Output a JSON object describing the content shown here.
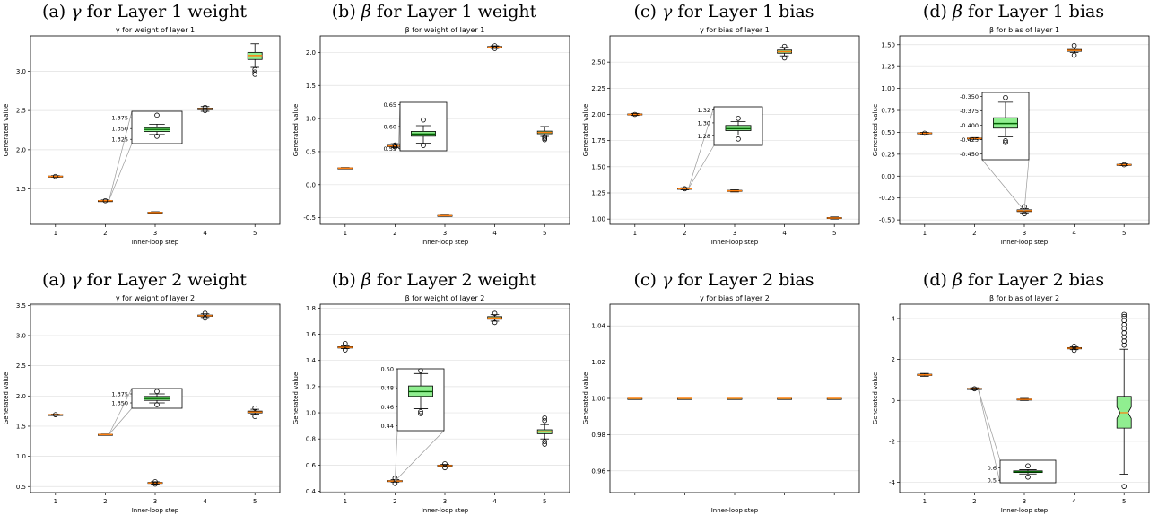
{
  "chart_data": [
    {
      "type": "box",
      "caption_prefix": "(a)",
      "caption_greek": "γ",
      "caption_rest": "for Layer 1 weight",
      "title": "γ for weight of layer 1",
      "xlabel": "Inner-loop step",
      "ylabel": "Generated value",
      "categories": [
        "1",
        "2",
        "3",
        "4",
        "5"
      ],
      "ylim": [
        1.05,
        3.45
      ],
      "yticks": [
        "1.5",
        "2.0",
        "2.5",
        "3.0"
      ],
      "grid": "horizontal",
      "boxes": [
        {
          "x": "1",
          "q1": 1.655,
          "median": 1.66,
          "q3": 1.665,
          "whisker_low": 1.65,
          "whisker_high": 1.67,
          "outliers": [
            1.66
          ]
        },
        {
          "x": "2",
          "q1": 1.348,
          "median": 1.35,
          "q3": 1.352,
          "whisker_low": 1.34,
          "whisker_high": 1.36,
          "outliers": [
            1.35
          ]
        },
        {
          "x": "3",
          "q1": 1.195,
          "median": 1.2,
          "q3": 1.205,
          "whisker_low": 1.19,
          "whisker_high": 1.21,
          "outliers": []
        },
        {
          "x": "4",
          "q1": 2.51,
          "median": 2.52,
          "q3": 2.53,
          "whisker_low": 2.49,
          "whisker_high": 2.55,
          "outliers": [
            2.5,
            2.54
          ]
        },
        {
          "x": "5",
          "q1": 3.15,
          "median": 3.2,
          "q3": 3.24,
          "whisker_low": 3.05,
          "whisker_high": 3.35,
          "outliers": [
            3.02,
            2.99,
            2.96
          ]
        }
      ],
      "inset": {
        "x": "2",
        "ylim": [
          1.315,
          1.39
        ],
        "yticks": [
          "1.375",
          "1.350",
          "1.325"
        ],
        "box": {
          "q1": 1.343,
          "median": 1.348,
          "q3": 1.352,
          "whisker_low": 1.336,
          "whisker_high": 1.36,
          "outliers": [
            1.381,
            1.332
          ]
        }
      }
    },
    {
      "type": "box",
      "caption_prefix": "(b)",
      "caption_greek": "β",
      "caption_rest": "for Layer 1 weight",
      "title": "β for weight of layer 1",
      "xlabel": "Inner-loop step",
      "ylabel": "Generated value",
      "categories": [
        "1",
        "2",
        "3",
        "4",
        "5"
      ],
      "ylim": [
        -0.6,
        2.25
      ],
      "yticks": [
        "-0.5",
        "0.0",
        "0.5",
        "1.0",
        "1.5",
        "2.0"
      ],
      "grid": "horizontal",
      "boxes": [
        {
          "x": "1",
          "q1": 0.245,
          "median": 0.25,
          "q3": 0.255,
          "whisker_low": 0.24,
          "whisker_high": 0.26,
          "outliers": []
        },
        {
          "x": "2",
          "q1": 0.575,
          "median": 0.585,
          "q3": 0.595,
          "whisker_low": 0.56,
          "whisker_high": 0.62,
          "outliers": [
            0.6,
            0.57
          ]
        },
        {
          "x": "3",
          "q1": -0.475,
          "median": -0.47,
          "q3": -0.465,
          "whisker_low": -0.48,
          "whisker_high": -0.46,
          "outliers": []
        },
        {
          "x": "4",
          "q1": 2.07,
          "median": 2.08,
          "q3": 2.09,
          "whisker_low": 2.06,
          "whisker_high": 2.1,
          "outliers": [
            2.1,
            2.06
          ]
        },
        {
          "x": "5",
          "q1": 0.77,
          "median": 0.79,
          "q3": 0.81,
          "whisker_low": 0.73,
          "whisker_high": 0.88,
          "outliers": [
            0.72,
            0.7,
            0.68
          ]
        }
      ],
      "inset": {
        "x": "2",
        "ylim": [
          0.545,
          0.655
        ],
        "yticks": [
          "0.65",
          "0.60",
          "0.55"
        ],
        "box": {
          "q1": 0.578,
          "median": 0.583,
          "q3": 0.589,
          "whisker_low": 0.562,
          "whisker_high": 0.602,
          "outliers": [
            0.615,
            0.557
          ]
        }
      }
    },
    {
      "type": "box",
      "caption_prefix": "(c)",
      "caption_greek": "γ",
      "caption_rest": "for Layer 1 bias",
      "title": "γ for bias of layer 1",
      "xlabel": "Inner-loop step",
      "ylabel": "Generated value",
      "categories": [
        "1",
        "2",
        "3",
        "4",
        "5"
      ],
      "ylim": [
        0.95,
        2.75
      ],
      "yticks": [
        "1.00",
        "1.25",
        "1.50",
        "1.75",
        "2.00",
        "2.25",
        "2.50"
      ],
      "grid": "horizontal",
      "boxes": [
        {
          "x": "1",
          "q1": 1.995,
          "median": 2.0,
          "q3": 2.005,
          "whisker_low": 1.99,
          "whisker_high": 2.01,
          "outliers": [
            2.0
          ]
        },
        {
          "x": "2",
          "q1": 1.285,
          "median": 1.29,
          "q3": 1.295,
          "whisker_low": 1.28,
          "whisker_high": 1.3,
          "outliers": [
            1.29
          ]
        },
        {
          "x": "3",
          "q1": 1.265,
          "median": 1.27,
          "q3": 1.275,
          "whisker_low": 1.26,
          "whisker_high": 1.28,
          "outliers": []
        },
        {
          "x": "4",
          "q1": 2.585,
          "median": 2.6,
          "q3": 2.615,
          "whisker_low": 2.56,
          "whisker_high": 2.64,
          "outliers": [
            2.65,
            2.54
          ]
        },
        {
          "x": "5",
          "q1": 1.005,
          "median": 1.01,
          "q3": 1.015,
          "whisker_low": 1.0,
          "whisker_high": 1.02,
          "outliers": []
        }
      ],
      "inset": {
        "x": "2",
        "ylim": [
          1.265,
          1.325
        ],
        "yticks": [
          "1.32",
          "1.30",
          "1.28"
        ],
        "box": {
          "q1": 1.288,
          "median": 1.291,
          "q3": 1.296,
          "whisker_low": 1.281,
          "whisker_high": 1.302,
          "outliers": [
            1.307,
            1.275
          ]
        }
      }
    },
    {
      "type": "box",
      "caption_prefix": "(d)",
      "caption_greek": "β",
      "caption_rest": "for Layer 1 bias",
      "title": "β for bias of layer 1",
      "xlabel": "Inner-loop step",
      "ylabel": "Generated value",
      "categories": [
        "1",
        "2",
        "3",
        "4",
        "5"
      ],
      "ylim": [
        -0.55,
        1.6
      ],
      "yticks": [
        "-0.50",
        "-0.25",
        "0.00",
        "0.25",
        "0.50",
        "0.75",
        "1.00",
        "1.25",
        "1.50"
      ],
      "grid": "horizontal",
      "boxes": [
        {
          "x": "1",
          "q1": 0.485,
          "median": 0.49,
          "q3": 0.495,
          "whisker_low": 0.48,
          "whisker_high": 0.5,
          "outliers": [
            0.49
          ]
        },
        {
          "x": "2",
          "q1": 0.425,
          "median": 0.43,
          "q3": 0.435,
          "whisker_low": 0.42,
          "whisker_high": 0.44,
          "outliers": []
        },
        {
          "x": "3",
          "q1": -0.405,
          "median": -0.395,
          "q3": -0.385,
          "whisker_low": -0.42,
          "whisker_high": -0.37,
          "outliers": [
            -0.35,
            -0.43
          ]
        },
        {
          "x": "4",
          "q1": 1.425,
          "median": 1.435,
          "q3": 1.445,
          "whisker_low": 1.41,
          "whisker_high": 1.46,
          "outliers": [
            1.49,
            1.38
          ]
        },
        {
          "x": "5",
          "q1": 0.125,
          "median": 0.13,
          "q3": 0.135,
          "whisker_low": 0.12,
          "whisker_high": 0.14,
          "outliers": [
            0.13
          ]
        }
      ],
      "inset": {
        "x": "3",
        "ylim": [
          -0.46,
          -0.343
        ],
        "yticks": [
          "-0.350",
          "-0.375",
          "-0.400",
          "-0.425",
          "-0.450"
        ],
        "box": {
          "q1": -0.405,
          "median": -0.397,
          "q3": -0.387,
          "whisker_low": -0.42,
          "whisker_high": -0.36,
          "outliers": [
            -0.352,
            -0.427,
            -0.43
          ]
        }
      }
    },
    {
      "type": "box",
      "caption_prefix": "(a)",
      "caption_greek": "γ",
      "caption_rest": "for Layer 2 weight",
      "title": "γ for weight of layer 2",
      "xlabel": "Inner-loop step",
      "ylabel": "Generated value",
      "categories": [
        "1",
        "2",
        "3",
        "4",
        "5"
      ],
      "ylim": [
        0.4,
        3.52
      ],
      "yticks": [
        "0.5",
        "1.0",
        "1.5",
        "2.0",
        "2.5",
        "3.0",
        "3.5"
      ],
      "grid": "horizontal",
      "boxes": [
        {
          "x": "1",
          "q1": 1.685,
          "median": 1.69,
          "q3": 1.695,
          "whisker_low": 1.68,
          "whisker_high": 1.7,
          "outliers": [
            1.69
          ]
        },
        {
          "x": "2",
          "q1": 1.355,
          "median": 1.36,
          "q3": 1.365,
          "whisker_low": 1.35,
          "whisker_high": 1.37,
          "outliers": []
        },
        {
          "x": "3",
          "q1": 0.555,
          "median": 0.56,
          "q3": 0.57,
          "whisker_low": 0.54,
          "whisker_high": 0.58,
          "outliers": [
            0.58,
            0.54
          ]
        },
        {
          "x": "4",
          "q1": 3.32,
          "median": 3.33,
          "q3": 3.34,
          "whisker_low": 3.3,
          "whisker_high": 3.36,
          "outliers": [
            3.37,
            3.29
          ]
        },
        {
          "x": "5",
          "q1": 1.72,
          "median": 1.735,
          "q3": 1.75,
          "whisker_low": 1.7,
          "whisker_high": 1.78,
          "outliers": [
            1.8,
            1.66
          ]
        }
      ],
      "inset": {
        "x": "2",
        "ylim": [
          1.335,
          1.39
        ],
        "yticks": [
          "1.375",
          "1.350"
        ],
        "box": {
          "q1": 1.357,
          "median": 1.362,
          "q3": 1.368,
          "whisker_low": 1.35,
          "whisker_high": 1.375,
          "outliers": [
            1.382,
            1.345
          ]
        }
      }
    },
    {
      "type": "box",
      "caption_prefix": "(b)",
      "caption_greek": "β",
      "caption_rest": "for Layer 2 weight",
      "title": "β for weight of layer 2",
      "xlabel": "Inner-loop step",
      "ylabel": "Generated value",
      "categories": [
        "1",
        "2",
        "3",
        "4",
        "5"
      ],
      "ylim": [
        0.39,
        1.83
      ],
      "yticks": [
        "0.4",
        "0.6",
        "0.8",
        "1.0",
        "1.2",
        "1.4",
        "1.6",
        "1.8"
      ],
      "grid": "horizontal",
      "boxes": [
        {
          "x": "1",
          "q1": 1.495,
          "median": 1.5,
          "q3": 1.505,
          "whisker_low": 1.49,
          "whisker_high": 1.51,
          "outliers": [
            1.53,
            1.48
          ]
        },
        {
          "x": "2",
          "q1": 0.475,
          "median": 0.478,
          "q3": 0.482,
          "whisker_low": 0.47,
          "whisker_high": 0.49,
          "outliers": [
            0.5,
            0.46
          ]
        },
        {
          "x": "3",
          "q1": 0.592,
          "median": 0.596,
          "q3": 0.6,
          "whisker_low": 0.585,
          "whisker_high": 0.605,
          "outliers": [
            0.61,
            0.58
          ]
        },
        {
          "x": "4",
          "q1": 1.715,
          "median": 1.725,
          "q3": 1.735,
          "whisker_low": 1.7,
          "whisker_high": 1.75,
          "outliers": [
            1.76,
            1.69
          ]
        },
        {
          "x": "5",
          "q1": 0.84,
          "median": 0.855,
          "q3": 0.87,
          "whisker_low": 0.8,
          "whisker_high": 0.91,
          "outliers": [
            0.96,
            0.94,
            0.78,
            0.76
          ]
        }
      ],
      "inset": {
        "x": "2",
        "ylim": [
          0.435,
          0.5
        ],
        "yticks": [
          "0.50",
          "0.48",
          "0.46",
          "0.44"
        ],
        "box": {
          "q1": 0.471,
          "median": 0.476,
          "q3": 0.482,
          "whisker_low": 0.458,
          "whisker_high": 0.495,
          "outliers": [
            0.498,
            0.455,
            0.453
          ]
        }
      }
    },
    {
      "type": "box",
      "caption_prefix": "(c)",
      "caption_greek": "γ",
      "caption_rest": "for Layer 2 bias",
      "title": "γ for bias of layer 2",
      "xlabel": "Inner-loop step",
      "ylabel": "Generated value",
      "categories": [
        "",
        "",
        "",
        "",
        ""
      ],
      "ylim": [
        0.948,
        1.052
      ],
      "yticks": [
        "0.96",
        "0.98",
        "1.00",
        "1.02",
        "1.04"
      ],
      "grid": "horizontal",
      "boxes": [
        {
          "x": "1",
          "q1": 1.0,
          "median": 1.0,
          "q3": 1.0,
          "whisker_low": 1.0,
          "whisker_high": 1.0,
          "outliers": []
        },
        {
          "x": "2",
          "q1": 1.0,
          "median": 1.0,
          "q3": 1.0,
          "whisker_low": 1.0,
          "whisker_high": 1.0,
          "outliers": []
        },
        {
          "x": "3",
          "q1": 1.0,
          "median": 1.0,
          "q3": 1.0,
          "whisker_low": 1.0,
          "whisker_high": 1.0,
          "outliers": []
        },
        {
          "x": "4",
          "q1": 1.0,
          "median": 1.0,
          "q3": 1.0,
          "whisker_low": 1.0,
          "whisker_high": 1.0,
          "outliers": []
        },
        {
          "x": "5",
          "q1": 1.0,
          "median": 1.0,
          "q3": 1.0,
          "whisker_low": 1.0,
          "whisker_high": 1.0,
          "outliers": []
        }
      ]
    },
    {
      "type": "box",
      "caption_prefix": "(d)",
      "caption_greek": "β",
      "caption_rest": "for Layer 2 bias",
      "title": "β for bias of layer 2",
      "xlabel": "Inner-loop step",
      "ylabel": "Generated value",
      "categories": [
        "1",
        "2",
        "3",
        "4",
        "5"
      ],
      "ylim": [
        -4.5,
        4.7
      ],
      "yticks": [
        "-4",
        "-2",
        "0",
        "2",
        "4"
      ],
      "grid": "horizontal",
      "boxes": [
        {
          "x": "1",
          "q1": 1.22,
          "median": 1.25,
          "q3": 1.28,
          "whisker_low": 1.18,
          "whisker_high": 1.32,
          "outliers": []
        },
        {
          "x": "2",
          "q1": 0.55,
          "median": 0.57,
          "q3": 0.59,
          "whisker_low": 0.52,
          "whisker_high": 0.62,
          "outliers": [
            0.57
          ]
        },
        {
          "x": "3",
          "q1": 0.03,
          "median": 0.05,
          "q3": 0.07,
          "whisker_low": 0.0,
          "whisker_high": 0.1,
          "outliers": []
        },
        {
          "x": "4",
          "q1": 2.52,
          "median": 2.55,
          "q3": 2.58,
          "whisker_low": 2.48,
          "whisker_high": 2.62,
          "outliers": [
            2.65,
            2.45
          ]
        },
        {
          "x": "5",
          "q1": -1.35,
          "median": -0.6,
          "q3": 0.2,
          "whisker_low": -3.6,
          "whisker_high": 2.5,
          "notched": true,
          "outliers": [
            2.7,
            2.9,
            3.1,
            3.3,
            3.5,
            3.7,
            3.9,
            4.1,
            4.2,
            -4.2
          ]
        }
      ],
      "inset": {
        "x": "2",
        "ylim": [
          0.48,
          0.66
        ],
        "yticks": [
          "0.6",
          "0.5"
        ],
        "box": {
          "q1": 0.562,
          "median": 0.568,
          "q3": 0.575,
          "whisker_low": 0.55,
          "whisker_high": 0.585,
          "outliers": [
            0.615,
            0.525
          ]
        }
      }
    }
  ],
  "colors": {
    "box_fill": "#90ee90",
    "median": "#ff7f0e",
    "inset_median": "#006400",
    "grid": "#e0e0e0",
    "connector": "#9a9a9a"
  }
}
